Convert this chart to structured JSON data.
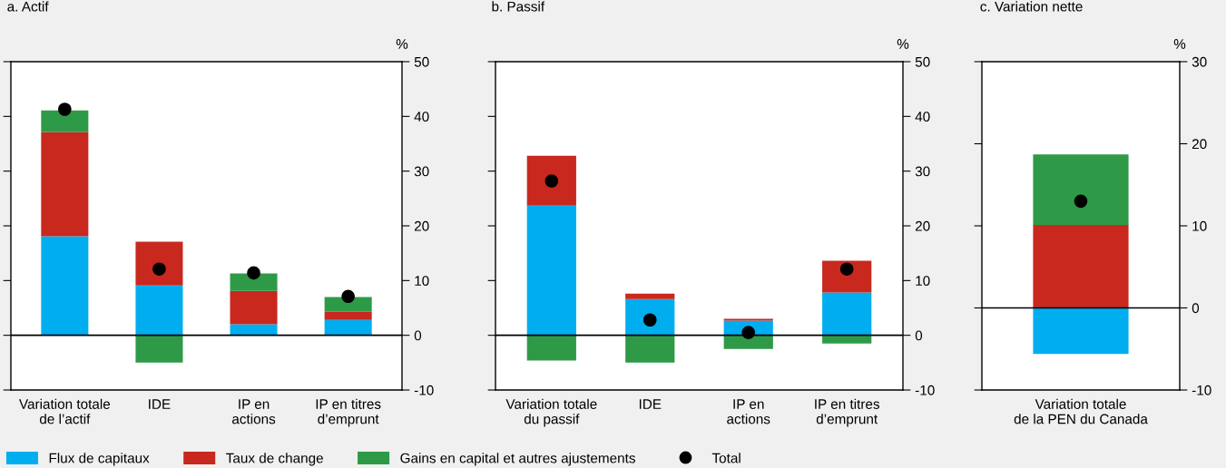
{
  "chart_data": [
    {
      "type": "bar",
      "stacked": true,
      "title": "a. Actif",
      "ylabel": "%",
      "categories": [
        "Variation totale\nde l’actif",
        "IDE",
        "IP en\nactions",
        "IP en titres\nd’emprunt"
      ],
      "ylim": [
        -10,
        50
      ],
      "yticks": [
        -10,
        0,
        10,
        20,
        30,
        40,
        50
      ],
      "legend": "bottom",
      "marker": "circle",
      "ref_lines": [
        {
          "axis": "y",
          "value": 0,
          "color": "#000000"
        }
      ],
      "series": [
        {
          "name": "Flux de capitaux",
          "color": "#00aeef",
          "values": [
            18.1,
            9.1,
            2.0,
            2.8
          ]
        },
        {
          "name": "Taux de change",
          "color": "#c8281e",
          "values": [
            19.0,
            8.0,
            6.1,
            1.5
          ]
        },
        {
          "name": "Gains en capital et autres ajustements",
          "color": "#2e9a47",
          "values": [
            4.0,
            -5.0,
            3.2,
            2.7
          ]
        },
        {
          "name": "Total",
          "type": "scatter",
          "color": "#000000",
          "values": [
            41.3,
            12.1,
            11.4,
            7.1
          ]
        }
      ]
    },
    {
      "type": "bar",
      "stacked": true,
      "title": "b. Passif",
      "ylabel": "%",
      "categories": [
        "Variation totale\ndu passif",
        "IDE",
        "IP en\nactions",
        "IP en titres\nd’emprunt"
      ],
      "ylim": [
        -10,
        50
      ],
      "yticks": [
        -10,
        0,
        10,
        20,
        30,
        40,
        50
      ],
      "marker": "circle",
      "ref_lines": [
        {
          "axis": "y",
          "value": 0,
          "color": "#000000"
        }
      ],
      "series": [
        {
          "name": "Flux de capitaux",
          "color": "#00aeef",
          "values": [
            23.7,
            6.6,
            2.7,
            7.8
          ]
        },
        {
          "name": "Taux de change",
          "color": "#c8281e",
          "values": [
            9.1,
            1.0,
            0.3,
            5.8
          ]
        },
        {
          "name": "Gains en capital et autres ajustements",
          "color": "#2e9a47",
          "values": [
            -4.6,
            -5.0,
            -2.5,
            -1.5
          ]
        },
        {
          "name": "Total",
          "type": "scatter",
          "color": "#000000",
          "values": [
            28.2,
            2.8,
            0.5,
            12.1
          ]
        }
      ]
    },
    {
      "type": "bar",
      "stacked": true,
      "title": "c. Variation nette",
      "ylabel": "%",
      "categories": [
        "Variation totale\nde la PEN du Canada"
      ],
      "ylim": [
        -10,
        30
      ],
      "yticks": [
        -10,
        0,
        10,
        20,
        30
      ],
      "marker": "circle",
      "ref_lines": [
        {
          "axis": "y",
          "value": 0,
          "color": "#000000"
        }
      ],
      "series": [
        {
          "name": "Flux de capitaux",
          "color": "#00aeef",
          "values": [
            -5.6
          ]
        },
        {
          "name": "Taux de change",
          "color": "#c8281e",
          "values": [
            10.1
          ]
        },
        {
          "name": "Gains en capital et autres ajustements",
          "color": "#2e9a47",
          "values": [
            8.6
          ]
        },
        {
          "name": "Total",
          "type": "scatter",
          "color": "#000000",
          "values": [
            13.0
          ]
        }
      ]
    }
  ]
}
